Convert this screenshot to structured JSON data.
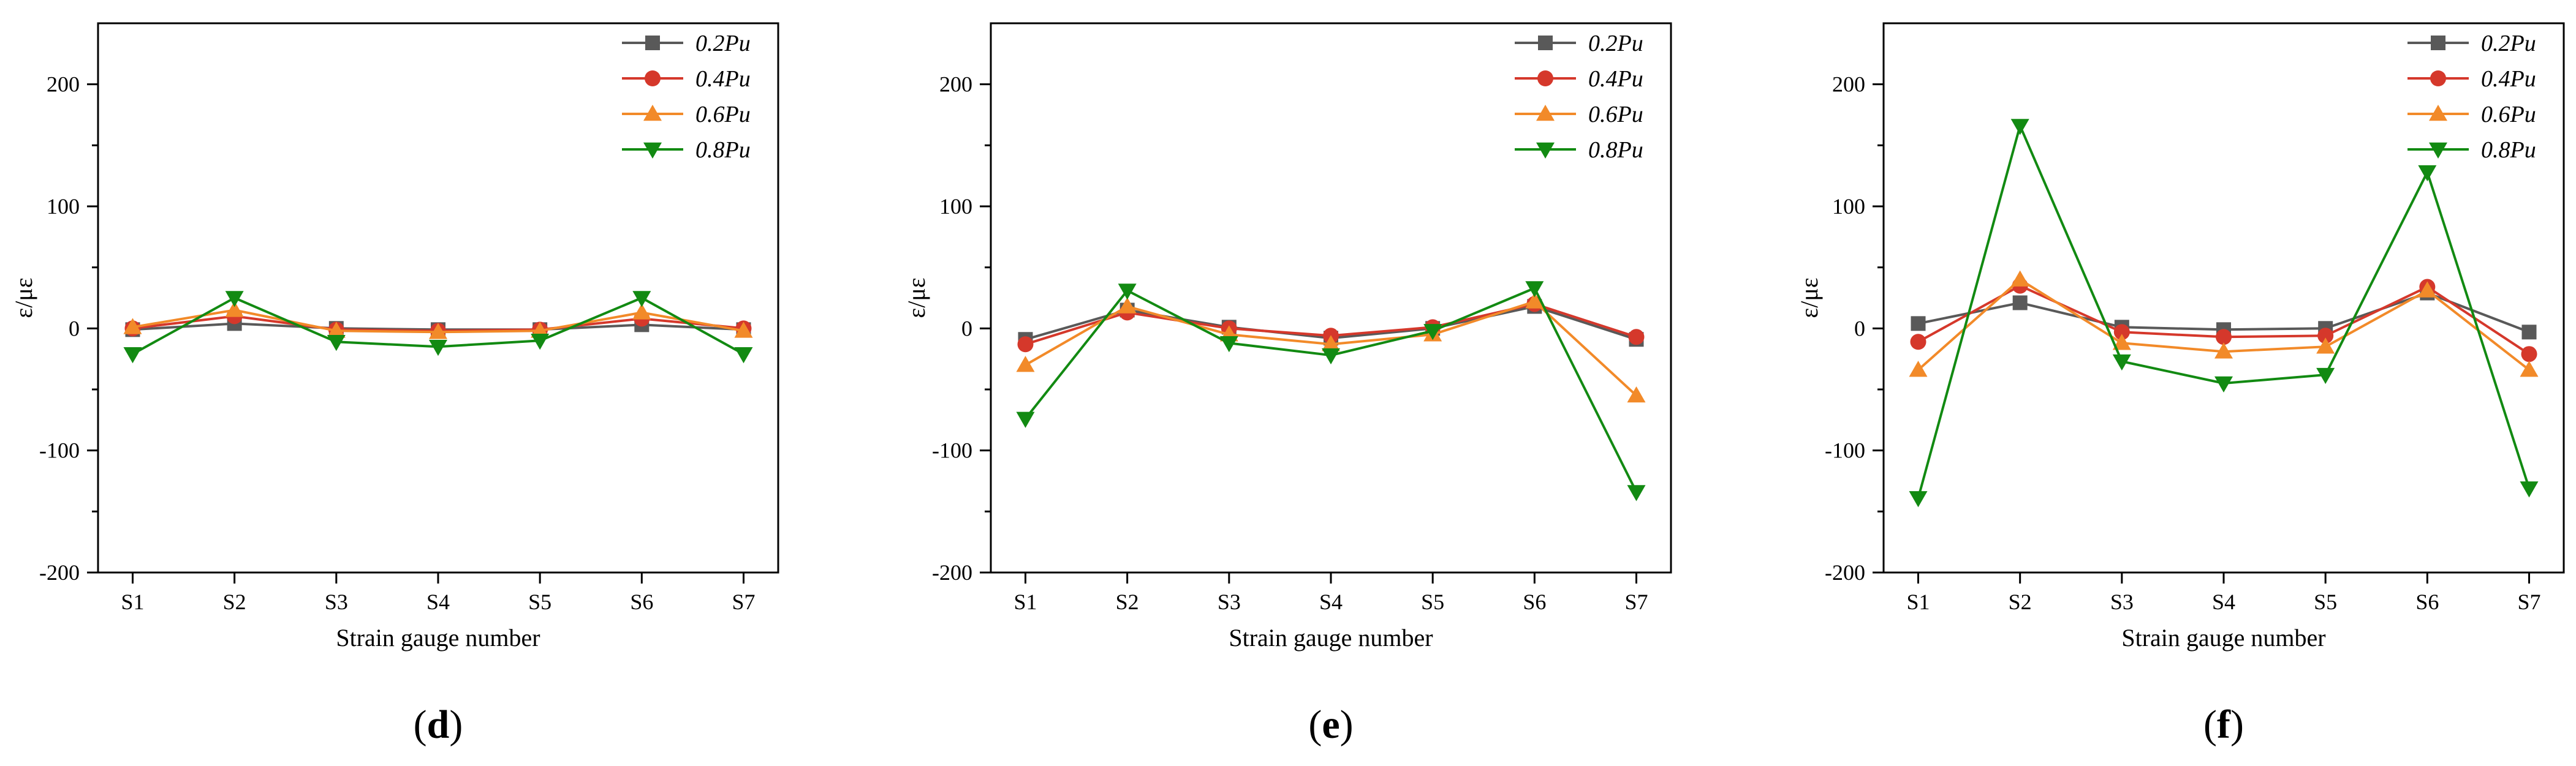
{
  "chart_data": [
    {
      "type": "line",
      "panel_label": "d",
      "categories": [
        "S1",
        "S2",
        "S3",
        "S4",
        "S5",
        "S6",
        "S7"
      ],
      "xlabel": "Strain gauge number",
      "ylabel": "ε/με",
      "ylim": [
        -200,
        250
      ],
      "yticks": [
        -200,
        -100,
        0,
        100,
        200
      ],
      "legend_position": "top-right",
      "series": [
        {
          "name": "0.2Pu",
          "color": "#595959",
          "marker": "square",
          "values": [
            -1,
            4,
            0,
            -1,
            -1,
            3,
            -1
          ]
        },
        {
          "name": "0.4Pu",
          "color": "#d5382b",
          "marker": "circle",
          "values": [
            0,
            10,
            -1,
            -2,
            -1,
            8,
            0
          ]
        },
        {
          "name": "0.6Pu",
          "color": "#f28a29",
          "marker": "triangle-up",
          "values": [
            1,
            15,
            -2,
            -3,
            -2,
            13,
            -2
          ]
        },
        {
          "name": "0.8Pu",
          "color": "#128a12",
          "marker": "triangle-down",
          "values": [
            -21,
            25,
            -11,
            -15,
            -10,
            25,
            -21
          ]
        }
      ]
    },
    {
      "type": "line",
      "panel_label": "e",
      "categories": [
        "S1",
        "S2",
        "S3",
        "S4",
        "S5",
        "S6",
        "S7"
      ],
      "xlabel": "Strain gauge number",
      "ylabel": "ε/με",
      "ylim": [
        -200,
        250
      ],
      "yticks": [
        -200,
        -100,
        0,
        100,
        200
      ],
      "legend_position": "top-right",
      "series": [
        {
          "name": "0.2Pu",
          "color": "#595959",
          "marker": "square",
          "values": [
            -9,
            15,
            1,
            -8,
            0,
            18,
            -9
          ]
        },
        {
          "name": "0.4Pu",
          "color": "#d5382b",
          "marker": "circle",
          "values": [
            -13,
            13,
            0,
            -6,
            1,
            20,
            -7
          ]
        },
        {
          "name": "0.6Pu",
          "color": "#f28a29",
          "marker": "triangle-up",
          "values": [
            -30,
            18,
            -5,
            -13,
            -5,
            22,
            -55
          ]
        },
        {
          "name": "0.8Pu",
          "color": "#128a12",
          "marker": "triangle-down",
          "values": [
            -74,
            31,
            -12,
            -22,
            -2,
            33,
            -134
          ]
        }
      ]
    },
    {
      "type": "line",
      "panel_label": "f",
      "categories": [
        "S1",
        "S2",
        "S3",
        "S4",
        "S5",
        "S6",
        "S7"
      ],
      "xlabel": "Strain gauge number",
      "ylabel": "ε/με",
      "ylim": [
        -200,
        250
      ],
      "yticks": [
        -200,
        -100,
        0,
        100,
        200
      ],
      "legend_position": "top-right",
      "series": [
        {
          "name": "0.2Pu",
          "color": "#595959",
          "marker": "square",
          "values": [
            4,
            21,
            1,
            -1,
            0,
            29,
            -3
          ]
        },
        {
          "name": "0.4Pu",
          "color": "#d5382b",
          "marker": "circle",
          "values": [
            -11,
            35,
            -3,
            -7,
            -6,
            34,
            -21
          ]
        },
        {
          "name": "0.6Pu",
          "color": "#f28a29",
          "marker": "triangle-up",
          "values": [
            -34,
            40,
            -12,
            -19,
            -15,
            31,
            -34
          ]
        },
        {
          "name": "0.8Pu",
          "color": "#128a12",
          "marker": "triangle-down",
          "values": [
            -139,
            166,
            -27,
            -45,
            -38,
            128,
            -131
          ]
        }
      ]
    }
  ]
}
